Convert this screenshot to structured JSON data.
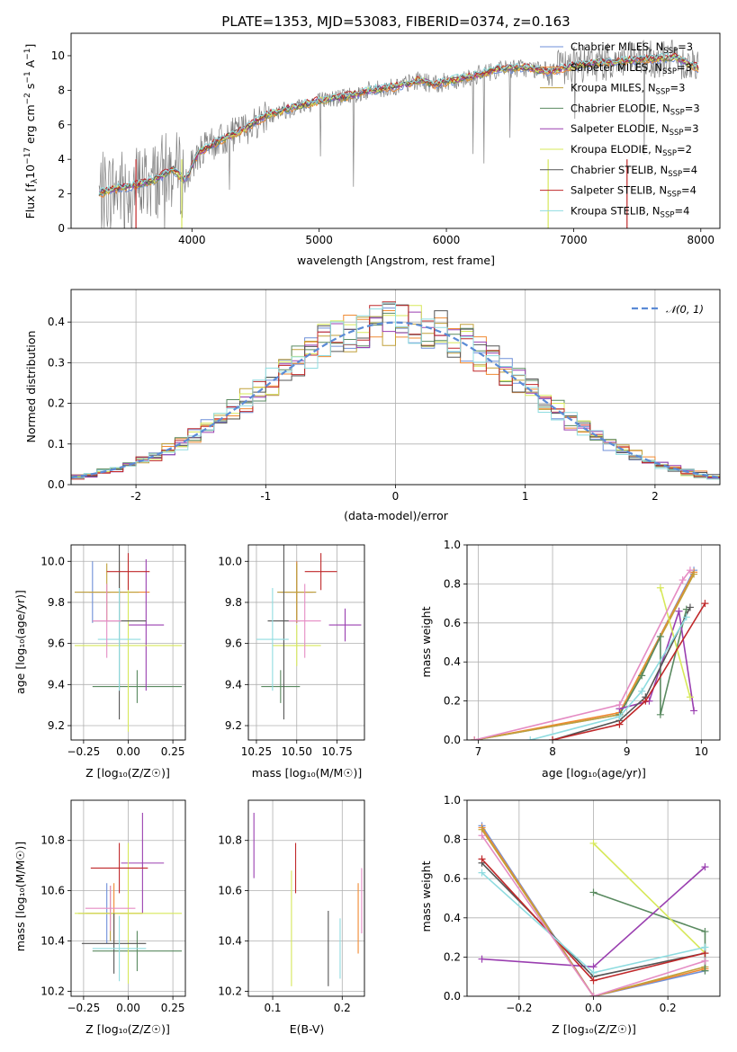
{
  "colors": {
    "Chabrier MILES": "#6f8fd8",
    "Salpeter MILES": "#f08a32",
    "Kroupa MILES": "#c0a03a",
    "Chabrier ELODIE": "#5a8a60",
    "Salpeter ELODIE": "#9a3fb0",
    "Kroupa ELODIE": "#d7e85a",
    "Chabrier STELIB": "#555555",
    "Salpeter STELIB": "#c0282a",
    "Kroupa STELIB": "#8fdce0",
    "Pink": "#e58cc4",
    "Normal": "#5b8bd6",
    "Data": "#808080"
  },
  "chart_data": [
    {
      "id": "spectrum",
      "type": "line",
      "title": "PLATE=1353, MJD=53083, FIBERID=0374, z=0.163",
      "xlabel": "wavelength [Angstrom, rest frame]",
      "ylabel_parts": [
        "Flux [f",
        "λ",
        "10",
        "−17",
        " erg cm",
        "−2",
        " s",
        "−1",
        " A",
        "−1",
        "]"
      ],
      "xlim": [
        3050,
        8150
      ],
      "ylim": [
        0,
        11.3
      ],
      "xticks": [
        4000,
        5000,
        6000,
        7000,
        8000
      ],
      "yticks": [
        0,
        2,
        4,
        6,
        8,
        10
      ],
      "grid": false,
      "legend_position": "top-right",
      "legend": [
        {
          "name": "Chabrier MILES",
          "nssp": "3",
          "color": "#6f8fd8"
        },
        {
          "name": "Salpeter MILES",
          "nssp": "3",
          "color": "#f08a32"
        },
        {
          "name": "Kroupa MILES",
          "nssp": "3",
          "color": "#c0a03a"
        },
        {
          "name": "Chabrier ELODIE",
          "nssp": "3",
          "color": "#5a8a60"
        },
        {
          "name": "Salpeter ELODIE",
          "nssp": "3",
          "color": "#9a3fb0"
        },
        {
          "name": "Kroupa ELODIE",
          "nssp": "2",
          "color": "#d7e85a"
        },
        {
          "name": "Chabrier STELIB",
          "nssp": "4",
          "color": "#555555"
        },
        {
          "name": "Salpeter STELIB",
          "nssp": "4",
          "color": "#c0282a"
        },
        {
          "name": "Kroupa STELIB",
          "nssp": "4",
          "color": "#8fdce0"
        }
      ],
      "legend_sub": "SSP",
      "continuum_x": [
        3270,
        3400,
        3550,
        3700,
        3850,
        3950,
        4050,
        4200,
        4400,
        4600,
        4800,
        5000,
        5200,
        5400,
        5600,
        5800,
        5900,
        6000,
        6200,
        6400,
        6600,
        6800,
        7000,
        7200,
        7400,
        7600,
        7800,
        7980
      ],
      "continuum_y": [
        2.0,
        2.3,
        2.5,
        2.8,
        3.4,
        2.8,
        4.4,
        5.0,
        5.7,
        6.6,
        7.0,
        7.4,
        7.6,
        8.0,
        8.2,
        8.6,
        8.3,
        8.5,
        8.8,
        9.2,
        9.3,
        9.1,
        9.4,
        9.6,
        9.7,
        9.8,
        9.9,
        9.3
      ]
    },
    {
      "id": "residual",
      "type": "histogram",
      "xlabel": "(data-model)/error",
      "ylabel": "Normed distribution",
      "xlim": [
        -2.5,
        2.5
      ],
      "ylim": [
        0,
        0.48
      ],
      "xticks": [
        -2,
        -1,
        0,
        1,
        2
      ],
      "yticks": [
        0.0,
        0.1,
        0.2,
        0.3,
        0.4
      ],
      "grid": true,
      "legend_position": "top-right",
      "normal_label": "𝒩(0, 1)",
      "bin_edges_start": -2.5,
      "bin_width": 0.1
    },
    {
      "id": "age_vs_Z",
      "type": "errorbar",
      "xlabel": "Z [log₁₀(Z/Z☉)]",
      "ylabel": "age  [log₁₀(age/yr)]",
      "xlim": [
        -0.32,
        0.32
      ],
      "ylim": [
        9.13,
        10.08
      ],
      "xticks": [
        -0.25,
        0.0,
        0.25
      ],
      "xtick_labels": [
        "−0.25",
        "0.00",
        "0.25"
      ],
      "yticks": [
        9.2,
        9.4,
        9.6,
        9.8,
        10.0
      ],
      "grid": true,
      "points": [
        {
          "color": "#6f8fd8",
          "x": -0.2,
          "xerr": 0.1,
          "y": 9.85,
          "yerr": 0.15
        },
        {
          "color": "#f08a32",
          "x": -0.05,
          "xerr": 0.17,
          "y": 9.85,
          "yerr": 0.15
        },
        {
          "color": "#c0a03a",
          "x": -0.12,
          "xerr": 0.18,
          "y": 9.85,
          "yerr": 0.14
        },
        {
          "color": "#5a8a60",
          "x": 0.05,
          "xerr": 0.25,
          "y": 9.39,
          "yerr": 0.08
        },
        {
          "color": "#9a3fb0",
          "x": 0.1,
          "xerr": 0.1,
          "y": 9.69,
          "yerr": 0.32
        },
        {
          "color": "#d7e85a",
          "x": 0.0,
          "xerr": 0.3,
          "y": 9.59,
          "yerr": 0.42
        },
        {
          "color": "#555555",
          "x": -0.05,
          "xerr": 0.15,
          "y": 9.71,
          "yerr": 0.48
        },
        {
          "color": "#c0282a",
          "x": 0.0,
          "xerr": 0.12,
          "y": 9.95,
          "yerr": 0.09
        },
        {
          "color": "#8fdce0",
          "x": -0.05,
          "xerr": 0.12,
          "y": 9.62,
          "yerr": 0.25
        },
        {
          "color": "#e58cc4",
          "x": -0.12,
          "xerr": 0.08,
          "y": 9.71,
          "yerr": 0.18
        }
      ]
    },
    {
      "id": "age_vs_mass",
      "type": "errorbar",
      "xlabel": "mass [log₁₀(M/M☉)]",
      "xlim": [
        10.2,
        10.92
      ],
      "ylim": [
        9.13,
        10.08
      ],
      "xticks": [
        10.25,
        10.5,
        10.75
      ],
      "xtick_labels": [
        "10.25",
        "10.50",
        "10.75"
      ],
      "yticks": [
        9.2,
        9.4,
        9.6,
        9.8,
        10.0
      ],
      "grid": true,
      "points": [
        {
          "color": "#6f8fd8",
          "x": 10.5,
          "xerr": 0.12,
          "y": 9.85,
          "yerr": 0.15
        },
        {
          "color": "#f08a32",
          "x": 10.5,
          "xerr": 0.1,
          "y": 9.85,
          "yerr": 0.15
        },
        {
          "color": "#c0a03a",
          "x": 10.5,
          "xerr": 0.12,
          "y": 9.85,
          "yerr": 0.14
        },
        {
          "color": "#5a8a60",
          "x": 10.4,
          "xerr": 0.12,
          "y": 9.39,
          "yerr": 0.08
        },
        {
          "color": "#9a3fb0",
          "x": 10.8,
          "xerr": 0.1,
          "y": 9.69,
          "yerr": 0.08
        },
        {
          "color": "#d7e85a",
          "x": 10.5,
          "xerr": 0.15,
          "y": 9.59,
          "yerr": 0.1
        },
        {
          "color": "#555555",
          "x": 10.42,
          "xerr": 0.1,
          "y": 9.71,
          "yerr": 0.48
        },
        {
          "color": "#c0282a",
          "x": 10.65,
          "xerr": 0.1,
          "y": 9.95,
          "yerr": 0.09
        },
        {
          "color": "#8fdce0",
          "x": 10.35,
          "xerr": 0.1,
          "y": 9.62,
          "yerr": 0.25
        },
        {
          "color": "#e58cc4",
          "x": 10.55,
          "xerr": 0.1,
          "y": 9.71,
          "yerr": 0.18
        }
      ]
    },
    {
      "id": "mw_vs_age",
      "type": "line",
      "xlabel": "age  [log₁₀(age/yr)]",
      "ylabel": "mass weight",
      "xlim": [
        6.85,
        10.25
      ],
      "ylim": [
        0,
        1
      ],
      "xticks": [
        7,
        8,
        9,
        10
      ],
      "yticks": [
        0.0,
        0.2,
        0.4,
        0.6,
        0.8,
        1.0
      ],
      "grid": true,
      "series": [
        {
          "color": "#6f8fd8",
          "x": [
            6.95,
            8.9,
            9.9
          ],
          "y": [
            0.0,
            0.13,
            0.87
          ]
        },
        {
          "color": "#f08a32",
          "x": [
            6.95,
            8.9,
            9.9
          ],
          "y": [
            0.0,
            0.14,
            0.86
          ]
        },
        {
          "color": "#c0a03a",
          "x": [
            6.95,
            8.9,
            9.9
          ],
          "y": [
            0.0,
            0.13,
            0.85
          ]
        },
        {
          "color": "#5a8a60",
          "x": [
            8.9,
            9.2,
            9.45,
            9.45,
            9.8
          ],
          "y": [
            0.13,
            0.33,
            0.53,
            0.13,
            0.67
          ]
        },
        {
          "color": "#9a3fb0",
          "x": [
            8.9,
            9.3,
            9.7,
            9.9
          ],
          "y": [
            0.16,
            0.2,
            0.66,
            0.15
          ]
        },
        {
          "color": "#d7e85a",
          "x": [
            9.45,
            9.85
          ],
          "y": [
            0.78,
            0.22
          ]
        },
        {
          "color": "#555555",
          "x": [
            8.0,
            8.9,
            9.25,
            9.85
          ],
          "y": [
            0.0,
            0.1,
            0.22,
            0.68
          ]
        },
        {
          "color": "#c0282a",
          "x": [
            8.0,
            8.9,
            9.25,
            10.05
          ],
          "y": [
            0.0,
            0.08,
            0.2,
            0.7
          ]
        },
        {
          "color": "#8fdce0",
          "x": [
            7.7,
            8.9,
            9.2,
            9.8
          ],
          "y": [
            0.0,
            0.12,
            0.25,
            0.63
          ]
        },
        {
          "color": "#e58cc4",
          "x": [
            6.95,
            8.9,
            9.75,
            9.85
          ],
          "y": [
            0.0,
            0.18,
            0.82,
            0.87
          ]
        }
      ]
    },
    {
      "id": "mass_vs_Z",
      "type": "errorbar",
      "xlabel": "Z [log₁₀(Z/Z☉)]",
      "ylabel": "mass [log₁₀(M/M☉)]",
      "xlim": [
        -0.32,
        0.32
      ],
      "ylim": [
        10.18,
        10.96
      ],
      "xticks": [
        -0.25,
        0.0,
        0.25
      ],
      "xtick_labels": [
        "−0.25",
        "0.00",
        "0.25"
      ],
      "yticks": [
        10.2,
        10.4,
        10.6,
        10.8
      ],
      "grid": true,
      "points": [
        {
          "color": "#6f8fd8",
          "x": -0.12,
          "xerr": 0.12,
          "y": 10.51,
          "yerr": 0.12
        },
        {
          "color": "#f08a32",
          "x": -0.08,
          "xerr": 0.16,
          "y": 10.51,
          "yerr": 0.12
        },
        {
          "color": "#c0a03a",
          "x": -0.1,
          "xerr": 0.18,
          "y": 10.51,
          "yerr": 0.11
        },
        {
          "color": "#5a8a60",
          "x": 0.05,
          "xerr": 0.25,
          "y": 10.36,
          "yerr": 0.08
        },
        {
          "color": "#9a3fb0",
          "x": 0.08,
          "xerr": 0.12,
          "y": 10.71,
          "yerr": 0.2
        },
        {
          "color": "#d7e85a",
          "x": 0.0,
          "xerr": 0.3,
          "y": 10.51,
          "yerr": 0.28
        },
        {
          "color": "#555555",
          "x": -0.08,
          "xerr": 0.18,
          "y": 10.39,
          "yerr": 0.12
        },
        {
          "color": "#c0282a",
          "x": -0.05,
          "xerr": 0.16,
          "y": 10.69,
          "yerr": 0.1
        },
        {
          "color": "#8fdce0",
          "x": -0.05,
          "xerr": 0.15,
          "y": 10.37,
          "yerr": 0.13
        },
        {
          "color": "#e58cc4",
          "x": -0.1,
          "xerr": 0.14,
          "y": 10.53,
          "yerr": 0.09
        }
      ]
    },
    {
      "id": "mass_vs_ebv",
      "type": "errorbar",
      "xlabel": "E(B-V)",
      "xlim": [
        0.065,
        0.232
      ],
      "ylim": [
        10.18,
        10.96
      ],
      "xticks": [
        0.1,
        0.2
      ],
      "xtick_labels": [
        "0.1",
        "0.2"
      ],
      "yticks": [
        10.2,
        10.4,
        10.6,
        10.8
      ],
      "grid": true,
      "points": [
        {
          "color": "#9a3fb0",
          "x": 0.073,
          "xerr": 0,
          "y": 10.78,
          "yerr": 0.13
        },
        {
          "color": "#d7e85a",
          "x": 0.127,
          "xerr": 0,
          "y": 10.45,
          "yerr": 0.23
        },
        {
          "color": "#c0282a",
          "x": 0.133,
          "xerr": 0,
          "y": 10.69,
          "yerr": 0.1
        },
        {
          "color": "#555555",
          "x": 0.18,
          "xerr": 0,
          "y": 10.37,
          "yerr": 0.15
        },
        {
          "color": "#8fdce0",
          "x": 0.197,
          "xerr": 0,
          "y": 10.37,
          "yerr": 0.12
        },
        {
          "color": "#f08a32",
          "x": 0.223,
          "xerr": 0,
          "y": 10.49,
          "yerr": 0.14
        },
        {
          "color": "#e58cc4",
          "x": 0.228,
          "xerr": 0,
          "y": 10.56,
          "yerr": 0.13
        }
      ]
    },
    {
      "id": "mw_vs_Z",
      "type": "line",
      "xlabel": "Z [log₁₀(Z/Z☉)]",
      "ylabel": "mass weight",
      "xlim": [
        -0.34,
        0.34
      ],
      "ylim": [
        0,
        1
      ],
      "xticks": [
        -0.2,
        0.0,
        0.2
      ],
      "xtick_labels": [
        "−0.2",
        "0.0",
        "0.2"
      ],
      "yticks": [
        0.0,
        0.2,
        0.4,
        0.6,
        0.8,
        1.0
      ],
      "grid": true,
      "series": [
        {
          "color": "#6f8fd8",
          "x": [
            -0.3,
            0.0,
            0.3
          ],
          "y": [
            0.87,
            0.0,
            0.13
          ]
        },
        {
          "color": "#f08a32",
          "x": [
            -0.3,
            0.0,
            0.3
          ],
          "y": [
            0.86,
            0.0,
            0.14
          ]
        },
        {
          "color": "#c0a03a",
          "x": [
            -0.3,
            0.0,
            0.3
          ],
          "y": [
            0.85,
            0.0,
            0.15
          ]
        },
        {
          "color": "#5a8a60",
          "x": [
            0.0,
            0.3,
            0.3
          ],
          "y": [
            0.53,
            0.33,
            0.13
          ]
        },
        {
          "color": "#9a3fb0",
          "x": [
            -0.3,
            0.0,
            0.3
          ],
          "y": [
            0.19,
            0.15,
            0.66
          ]
        },
        {
          "color": "#d7e85a",
          "x": [
            0.0,
            0.3
          ],
          "y": [
            0.78,
            0.22
          ]
        },
        {
          "color": "#555555",
          "x": [
            -0.3,
            0.0,
            0.3
          ],
          "y": [
            0.68,
            0.1,
            0.22
          ]
        },
        {
          "color": "#c0282a",
          "x": [
            -0.3,
            0.0,
            0.3
          ],
          "y": [
            0.7,
            0.08,
            0.22
          ]
        },
        {
          "color": "#8fdce0",
          "x": [
            -0.3,
            0.0,
            0.3
          ],
          "y": [
            0.63,
            0.12,
            0.25
          ]
        },
        {
          "color": "#e58cc4",
          "x": [
            -0.3,
            0.0,
            0.3
          ],
          "y": [
            0.82,
            0.0,
            0.18
          ]
        }
      ]
    }
  ]
}
